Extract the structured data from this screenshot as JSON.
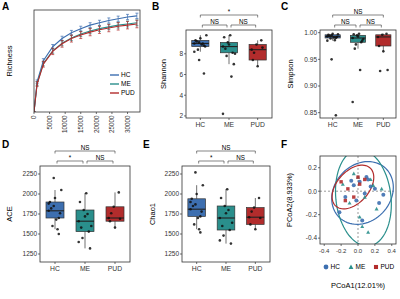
{
  "chart_data": [
    {
      "type": "line",
      "title": "A",
      "y_label": "Richness",
      "x": [
        0,
        1000,
        3000,
        6000,
        9000,
        12000,
        15000,
        18000,
        21000,
        24000,
        27000,
        30000,
        33000
      ],
      "xlim": [
        0,
        34000
      ],
      "xticks": [
        0,
        5000,
        10000,
        15000,
        20000,
        25000,
        30000
      ],
      "ylim": [
        0,
        1750
      ],
      "tick_labels": "x",
      "legend": "right",
      "series": [
        {
          "name": "HC",
          "color": "#3d6fb0",
          "values": [
            0,
            520,
            880,
            1120,
            1260,
            1360,
            1430,
            1490,
            1530,
            1570,
            1600,
            1630,
            1650
          ],
          "errors": [
            0,
            30,
            35,
            38,
            40,
            40,
            42,
            42,
            44,
            44,
            45,
            45,
            46
          ]
        },
        {
          "name": "ME",
          "color": "#2a8f8c",
          "values": [
            0,
            490,
            830,
            1050,
            1180,
            1270,
            1340,
            1390,
            1430,
            1460,
            1490,
            1510,
            1530
          ],
          "errors": [
            0,
            32,
            38,
            42,
            44,
            45,
            46,
            47,
            48,
            48,
            49,
            50,
            50
          ]
        },
        {
          "name": "PUD",
          "color": "#b22c2c",
          "values": [
            0,
            480,
            820,
            1040,
            1170,
            1260,
            1320,
            1370,
            1410,
            1440,
            1470,
            1490,
            1510
          ],
          "errors": [
            0,
            40,
            50,
            55,
            58,
            60,
            60,
            62,
            62,
            63,
            64,
            64,
            65
          ]
        }
      ]
    },
    {
      "type": "box",
      "title": "B",
      "y_label": "Shannon",
      "categories": [
        "HC",
        "ME",
        "PUD"
      ],
      "colors": [
        "#3d6fb0",
        "#2a8f8c",
        "#b22c2c"
      ],
      "ylim": [
        1.8,
        10.3
      ],
      "yticks": [
        2,
        4,
        6,
        8
      ],
      "boxes": [
        {
          "low": 8.2,
          "q1": 8.7,
          "median": 9.0,
          "q3": 9.3,
          "high": 9.8
        },
        {
          "low": 7.0,
          "q1": 8.1,
          "median": 8.7,
          "q3": 9.1,
          "high": 9.8
        },
        {
          "low": 6.8,
          "q1": 7.4,
          "median": 8.4,
          "q3": 8.9,
          "high": 9.3
        }
      ],
      "points": [
        [
          9.0,
          9.1,
          8.8,
          9.3,
          9.5,
          8.7,
          9.2,
          8.9,
          9.8,
          8.4,
          9.0,
          8.2,
          7.4,
          6.1
        ],
        [
          8.7,
          9.1,
          8.1,
          9.6,
          8.9,
          7.0,
          8.5,
          9.8,
          8.0,
          7.8,
          5.8,
          2.2
        ],
        [
          8.4,
          8.9,
          9.3,
          7.4,
          6.8,
          8.6,
          8.1
        ]
      ],
      "annotations": [
        {
          "groups": [
            "HC",
            "ME"
          ],
          "text": "NS"
        },
        {
          "groups": [
            "ME",
            "PUD"
          ],
          "text": "NS"
        },
        {
          "groups": [
            "HC",
            "PUD"
          ],
          "text": "*"
        }
      ]
    },
    {
      "type": "box",
      "title": "C",
      "y_label": "Simpson",
      "categories": [
        "HC",
        "ME",
        "PUD"
      ],
      "colors": [
        "#3d6fb0",
        "#2a8f8c",
        "#b22c2c"
      ],
      "ylim": [
        0.84,
        1.005
      ],
      "yticks": [
        0.85,
        {
          "value": 0.9,
          "label": "0.90"
        },
        0.95,
        {
          "value": 1,
          "label": "1.00"
        }
      ],
      "boxes": [
        {
          "low": 0.985,
          "q1": 0.99,
          "median": 0.993,
          "q3": 0.996,
          "high": 0.998
        },
        {
          "low": 0.97,
          "q1": 0.982,
          "median": 0.99,
          "q3": 0.995,
          "high": 0.998
        },
        {
          "low": 0.965,
          "q1": 0.975,
          "median": 0.992,
          "q3": 0.996,
          "high": 0.998
        }
      ],
      "points": [
        [
          0.993,
          0.995,
          0.99,
          0.996,
          0.998,
          0.992,
          0.994,
          0.991,
          0.997,
          0.989,
          0.986,
          0.985,
          0.95,
          0.845
        ],
        [
          0.99,
          0.995,
          0.982,
          0.997,
          0.993,
          0.985,
          0.97,
          0.998,
          0.988,
          0.978,
          0.93,
          0.87
        ],
        [
          0.992,
          0.996,
          0.998,
          0.975,
          0.965,
          0.93,
          0.928
        ]
      ],
      "annotations": [
        {
          "groups": [
            "HC",
            "ME"
          ],
          "text": "NS"
        },
        {
          "groups": [
            "ME",
            "PUD"
          ],
          "text": "NS"
        },
        {
          "groups": [
            "HC",
            "PUD"
          ],
          "text": "NS"
        }
      ]
    },
    {
      "type": "box",
      "title": "D",
      "y_label": "ACE",
      "categories": [
        "HC",
        "ME",
        "PUD"
      ],
      "colors": [
        "#3d6fb0",
        "#2a8f8c",
        "#b22c2c"
      ],
      "ylim": [
        1150,
        2350
      ],
      "yticks": [
        1250,
        1500,
        1750,
        2000,
        2250
      ],
      "boxes": [
        {
          "low": 1560,
          "q1": 1700,
          "median": 1790,
          "q3": 1900,
          "high": 2050
        },
        {
          "low": 1320,
          "q1": 1530,
          "median": 1660,
          "q3": 1800,
          "high": 2010
        },
        {
          "low": 1580,
          "q1": 1660,
          "median": 1700,
          "q3": 1840,
          "high": 2020
        }
      ],
      "points": [
        [
          1790,
          1850,
          1700,
          1900,
          1950,
          1760,
          1820,
          1680,
          2050,
          1600,
          1560,
          1880,
          2200,
          1500
        ],
        [
          1660,
          1800,
          1530,
          1900,
          1720,
          1320,
          1580,
          2010,
          1600,
          1450,
          1750,
          1400
        ],
        [
          1700,
          1840,
          2020,
          1660,
          1580,
          1690,
          1760
        ]
      ],
      "annotations": [
        {
          "groups": [
            "HC",
            "ME"
          ],
          "text": "*"
        },
        {
          "groups": [
            "ME",
            "PUD"
          ],
          "text": "NS"
        },
        {
          "groups": [
            "HC",
            "PUD"
          ],
          "text": "NS"
        }
      ]
    },
    {
      "type": "box",
      "title": "E",
      "y_label": "Chao1",
      "categories": [
        "HC",
        "ME",
        "PUD"
      ],
      "colors": [
        "#3d6fb0",
        "#2a8f8c",
        "#b22c2c"
      ],
      "ylim": [
        1150,
        2350
      ],
      "yticks": [
        1250,
        1500,
        1750,
        2000,
        2250
      ],
      "boxes": [
        {
          "low": 1560,
          "q1": 1720,
          "median": 1810,
          "q3": 1940,
          "high": 2110
        },
        {
          "low": 1380,
          "q1": 1550,
          "median": 1700,
          "q3": 1850,
          "high": 2060
        },
        {
          "low": 1560,
          "q1": 1620,
          "median": 1710,
          "q3": 1830,
          "high": 1950
        }
      ],
      "points": [
        [
          1810,
          1870,
          1720,
          1940,
          2000,
          1780,
          1850,
          1700,
          2110,
          1620,
          1560,
          1900,
          2270,
          1520
        ],
        [
          1700,
          1850,
          1550,
          1950,
          1760,
          1380,
          1600,
          2060,
          1640,
          1480,
          1800,
          1420
        ],
        [
          1710,
          1830,
          1950,
          1620,
          1560,
          1700,
          1780
        ]
      ],
      "annotations": [
        {
          "groups": [
            "HC",
            "ME"
          ],
          "text": "*"
        },
        {
          "groups": [
            "ME",
            "PUD"
          ],
          "text": "NS"
        },
        {
          "groups": [
            "HC",
            "PUD"
          ],
          "text": "NS"
        }
      ]
    },
    {
      "type": "scatter",
      "title": "F",
      "x_label": "PCoA1(12.01%)",
      "y_label": "PCoA2(8.933%)",
      "xlim": [
        -0.45,
        0.45
      ],
      "xticks": [
        -0.4,
        -0.2,
        {
          "value": 0,
          "label": "0.0"
        },
        0.2,
        0.4
      ],
      "ylim": [
        -0.45,
        0.3
      ],
      "yticks": [
        -0.4,
        -0.2,
        {
          "value": 0,
          "label": "0.0"
        },
        0.2
      ],
      "legend": "bottom",
      "series": [
        {
          "name": "HC",
          "color": "#3d6fb0",
          "marker": "circle",
          "x": [
            -0.05,
            0.02,
            0.08,
            0.12,
            -0.15,
            0.2,
            0.25,
            -0.22,
            0.05,
            -0.08,
            0.15,
            0.3,
            -0.02,
            0.1
          ],
          "values": [
            0.05,
            0.08,
            -0.02,
            0.1,
            -0.05,
            0.02,
            -0.1,
            -0.18,
            -0.25,
            0.09,
            0.04,
            -0.03,
            -0.08,
            0.12
          ]
        },
        {
          "name": "ME",
          "color": "#2a8f8c",
          "marker": "triangle",
          "x": [
            -0.18,
            -0.1,
            0.0,
            0.05,
            0.12,
            0.18,
            0.22,
            0.28,
            -0.05,
            0.08,
            0.15,
            0.02
          ],
          "values": [
            0.06,
            -0.1,
            0.12,
            -0.3,
            -0.35,
            0.05,
            -0.15,
            0.02,
            0.15,
            -0.05,
            0.1,
            -0.22
          ]
        },
        {
          "name": "PUD",
          "color": "#b22c2c",
          "marker": "square",
          "x": [
            -0.2,
            -0.12,
            -0.05,
            0.02,
            0.08,
            -0.15,
            0.0
          ],
          "values": [
            0.08,
            0.02,
            -0.05,
            0.06,
            0.1,
            -0.08,
            0.12
          ]
        }
      ]
    }
  ]
}
